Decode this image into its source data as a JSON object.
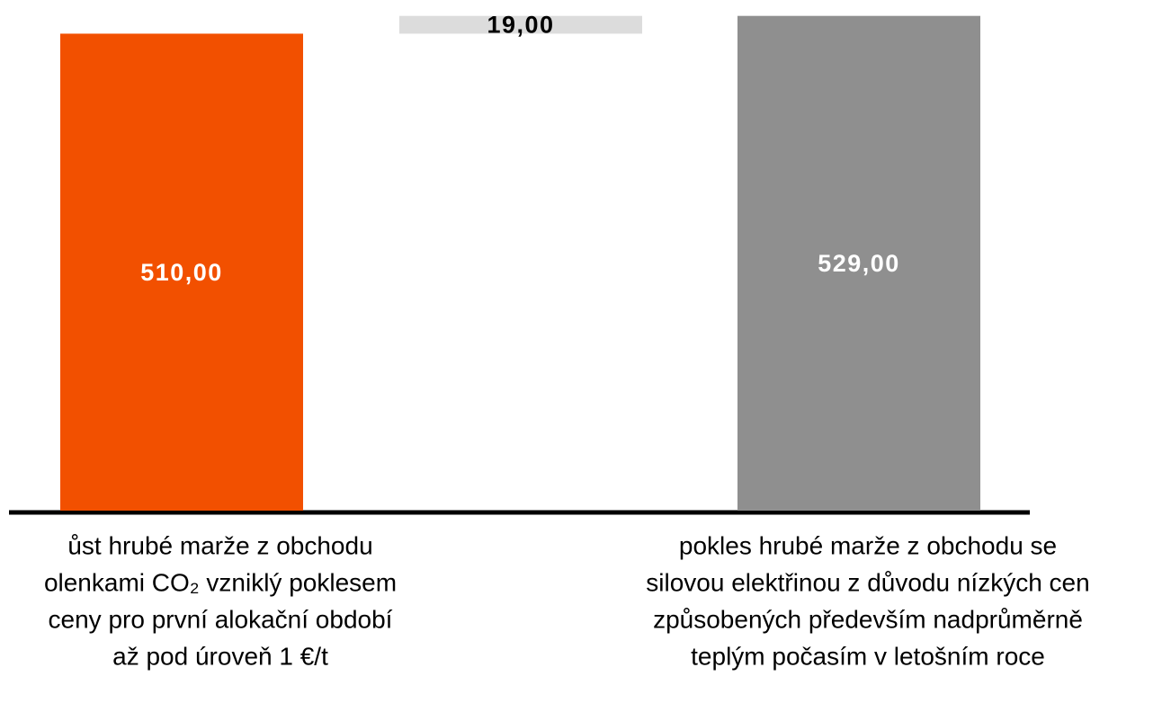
{
  "chart_data": {
    "type": "waterfall",
    "values": [
      510,
      19,
      529
    ],
    "value_labels": [
      "510,00",
      "19,00",
      "529,00"
    ],
    "is_total": [
      false,
      false,
      true
    ],
    "colors": [
      "#f25000",
      "#dcdcdc",
      "#8f8f8f"
    ],
    "label_colors": [
      "#ffffff",
      "#000000",
      "#ffffff"
    ],
    "ylim": [
      0,
      546
    ],
    "annotations": [
      [
        "ůst hrubé marže z obchodu",
        "olenkami CO₂ vzniklý poklesem",
        "ceny pro první alokační období",
        "až pod úroveň 1 €/t"
      ],
      [
        "pokles hrubé marže z obchodu se",
        "silovou elektřinou z důvodu nízkých cen",
        "způsobených především nadprůměrně",
        "teplým počasím v letošním roce"
      ]
    ]
  }
}
